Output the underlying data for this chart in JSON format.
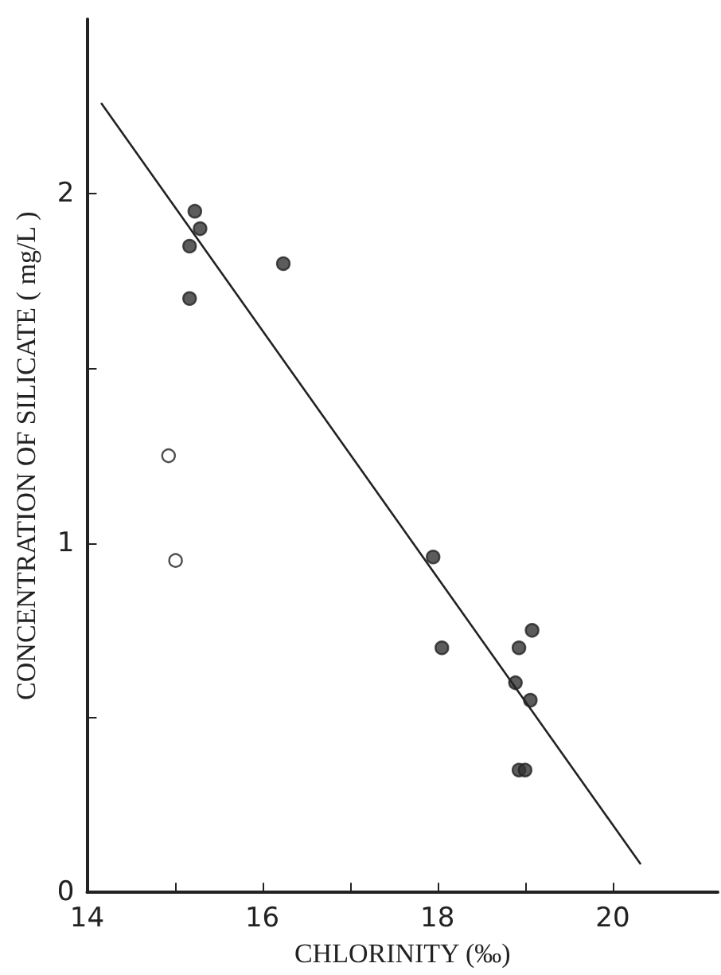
{
  "chart_data": {
    "type": "scatter",
    "xlabel": "CHLORINITY (‰)",
    "ylabel": "CONCENTRATION OF SILICATE ( mg/L )",
    "xlim": [
      14,
      21.2
    ],
    "xticks": [
      14,
      {
        "value": 15,
        "label": null
      },
      16,
      {
        "value": 17,
        "label": null
      },
      18,
      {
        "value": 19,
        "label": null
      },
      20
    ],
    "ylim": [
      0,
      2.5
    ],
    "yticks": [
      0,
      {
        "value": 0.5,
        "label": null
      },
      1,
      {
        "value": 1.5,
        "label": null
      },
      2
    ],
    "grid": false,
    "marker": "circle",
    "series": [
      {
        "color": "#333333",
        "x": [
          15.23,
          15.29,
          15.17,
          15.17,
          16.24,
          17.95,
          18.05,
          19.08,
          18.93,
          18.89,
          19.06,
          18.93,
          19.0
        ],
        "values": [
          1.95,
          1.9,
          1.85,
          1.7,
          1.8,
          0.96,
          0.7,
          0.75,
          0.7,
          0.6,
          0.55,
          0.35,
          0.35
        ]
      },
      {
        "color": "#ffffff",
        "x": [
          14.93,
          15.01
        ],
        "values": [
          1.25,
          0.95
        ]
      },
      {
        "type": "line",
        "color": "#222222",
        "marker": "none",
        "line_style": "solid",
        "x": [
          14.16,
          20.32
        ],
        "values": [
          2.26,
          0.08
        ]
      }
    ]
  }
}
